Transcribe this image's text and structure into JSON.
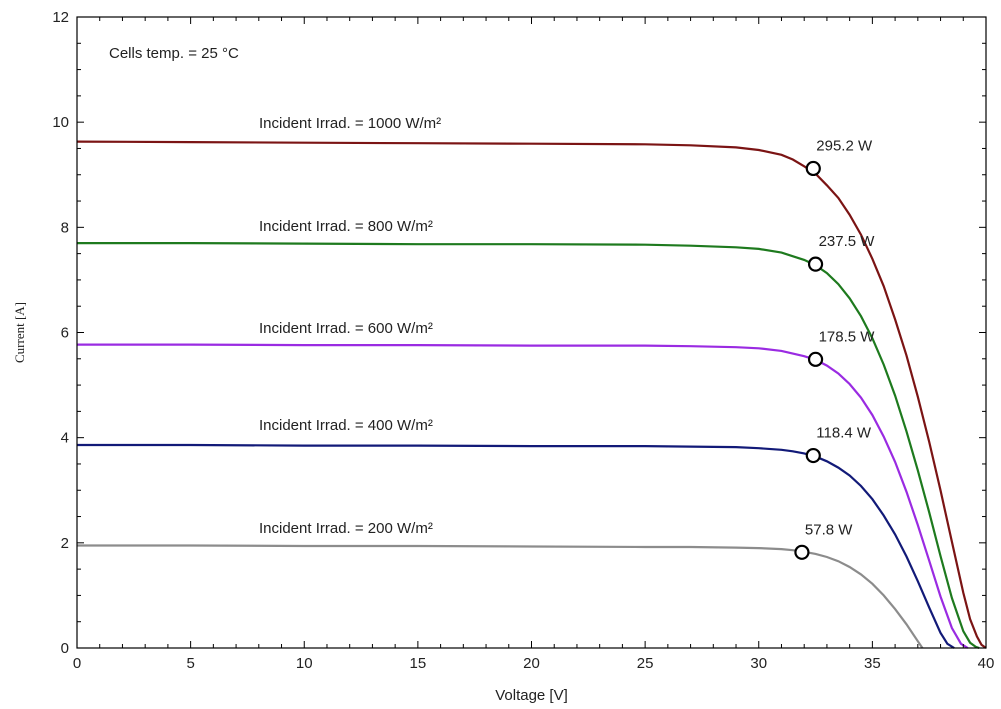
{
  "chart_data": {
    "type": "line",
    "title": "",
    "xlabel": "Voltage [V]",
    "ylabel": "Current [A]",
    "xlim": [
      0,
      40
    ],
    "ylim": [
      0,
      12
    ],
    "xticks": [
      0,
      5,
      10,
      15,
      20,
      25,
      30,
      35,
      40
    ],
    "yticks": [
      0,
      2,
      4,
      6,
      8,
      10,
      12
    ],
    "grid": false,
    "annotation": "Cells temp. = 25 °C",
    "series": [
      {
        "name": "Incident Irrad. = 1000 W/m²",
        "color": "#7b1414",
        "x": [
          0,
          5,
          10,
          15,
          20,
          25,
          27,
          29,
          30,
          31,
          31.5,
          32,
          32.5,
          33,
          33.5,
          34,
          34.5,
          35,
          35.5,
          36,
          36.5,
          37,
          37.5,
          38,
          38.5,
          39,
          39.3,
          39.6,
          39.8,
          40.0
        ],
        "y": [
          9.63,
          9.62,
          9.61,
          9.6,
          9.59,
          9.58,
          9.56,
          9.52,
          9.47,
          9.38,
          9.29,
          9.16,
          9.02,
          8.8,
          8.56,
          8.24,
          7.86,
          7.4,
          6.88,
          6.25,
          5.56,
          4.78,
          3.92,
          3.0,
          2.02,
          1.05,
          0.55,
          0.22,
          0.06,
          0
        ]
      },
      {
        "name": "Incident Irrad. = 800 W/m²",
        "color": "#1e7a1e",
        "x": [
          0,
          5,
          10,
          15,
          20,
          25,
          27,
          29,
          30,
          31,
          32,
          32.5,
          33,
          33.5,
          34,
          34.5,
          35,
          35.5,
          36,
          36.5,
          37,
          37.5,
          38,
          38.5,
          39,
          39.3,
          39.55,
          39.7
        ],
        "y": [
          7.7,
          7.7,
          7.69,
          7.68,
          7.68,
          7.67,
          7.65,
          7.62,
          7.59,
          7.52,
          7.38,
          7.28,
          7.13,
          6.92,
          6.65,
          6.31,
          5.89,
          5.39,
          4.8,
          4.12,
          3.38,
          2.58,
          1.75,
          0.95,
          0.32,
          0.1,
          0.02,
          0
        ]
      },
      {
        "name": "Incident Irrad. = 600 W/m²",
        "color": "#9a2be2",
        "x": [
          0,
          5,
          10,
          15,
          20,
          25,
          27,
          29,
          30,
          31,
          32,
          32.5,
          33,
          33.5,
          34,
          34.5,
          35,
          35.5,
          36,
          36.5,
          37,
          37.5,
          38,
          38.5,
          38.9,
          39.2
        ],
        "y": [
          5.77,
          5.77,
          5.76,
          5.76,
          5.75,
          5.75,
          5.74,
          5.72,
          5.7,
          5.65,
          5.55,
          5.48,
          5.37,
          5.22,
          5.02,
          4.76,
          4.43,
          4.02,
          3.54,
          2.97,
          2.34,
          1.66,
          0.98,
          0.38,
          0.08,
          0
        ]
      },
      {
        "name": "Incident Irrad. = 400 W/m²",
        "color": "#121a78",
        "x": [
          0,
          5,
          10,
          15,
          20,
          25,
          27,
          29,
          30,
          31,
          31.5,
          32,
          32.5,
          33,
          33.5,
          34,
          34.5,
          35,
          35.5,
          36,
          36.5,
          37,
          37.5,
          38,
          38.3,
          38.6
        ],
        "y": [
          3.86,
          3.86,
          3.85,
          3.85,
          3.84,
          3.84,
          3.83,
          3.82,
          3.8,
          3.77,
          3.74,
          3.7,
          3.64,
          3.55,
          3.43,
          3.28,
          3.08,
          2.83,
          2.52,
          2.16,
          1.74,
          1.27,
          0.77,
          0.29,
          0.08,
          0
        ]
      },
      {
        "name": "Incident Irrad. = 200 W/m²",
        "color": "#8c8c8c",
        "x": [
          0,
          5,
          10,
          15,
          20,
          25,
          27,
          29,
          30,
          31,
          31.5,
          32,
          32.5,
          33,
          33.5,
          34,
          34.5,
          35,
          35.5,
          36,
          36.5,
          37,
          37.2
        ],
        "y": [
          1.95,
          1.95,
          1.94,
          1.94,
          1.93,
          1.92,
          1.92,
          1.91,
          1.9,
          1.88,
          1.86,
          1.83,
          1.79,
          1.73,
          1.65,
          1.54,
          1.4,
          1.22,
          1.0,
          0.74,
          0.45,
          0.13,
          0
        ]
      }
    ],
    "mpp": [
      {
        "label": "295.2 W",
        "x": 32.4,
        "y": 9.12,
        "series": 0
      },
      {
        "label": "237.5 W",
        "x": 32.5,
        "y": 7.3,
        "series": 1
      },
      {
        "label": "178.5 W",
        "x": 32.5,
        "y": 5.49,
        "series": 2
      },
      {
        "label": "118.4 W",
        "x": 32.4,
        "y": 3.66,
        "series": 3
      },
      {
        "label": "57.8 W",
        "x": 31.9,
        "y": 1.82,
        "series": 4
      }
    ]
  }
}
